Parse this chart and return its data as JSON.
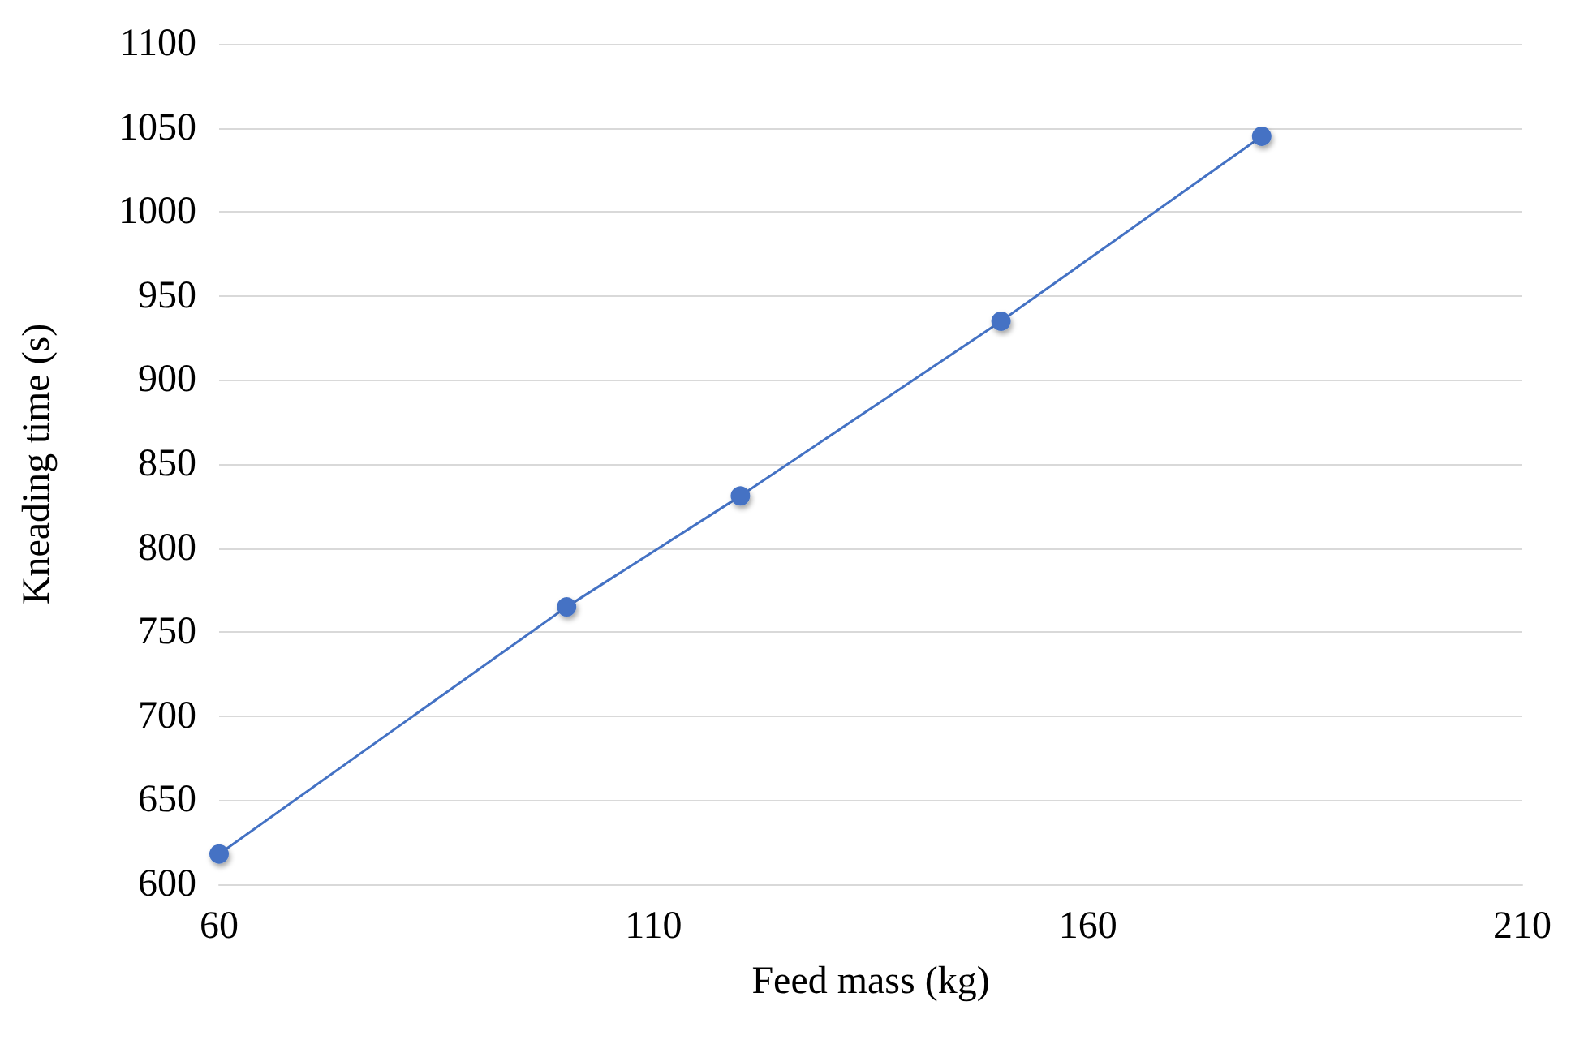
{
  "chart_data": {
    "type": "line",
    "xlabel": "Feed mass (kg)",
    "ylabel": "Kneading time (s)",
    "x": [
      60,
      100,
      120,
      150,
      180
    ],
    "series": [
      {
        "color": "#4472c4",
        "values": [
          618,
          765,
          831,
          935,
          1045
        ]
      }
    ],
    "xlim": [
      60,
      210
    ],
    "xticks": [
      60,
      110,
      160,
      210
    ],
    "ylim": [
      600,
      1100
    ],
    "yticks": [
      600,
      650,
      700,
      750,
      800,
      850,
      900,
      950,
      1000,
      1050,
      1100
    ],
    "grid": "y",
    "marker": "circle",
    "line_style": "solid"
  }
}
